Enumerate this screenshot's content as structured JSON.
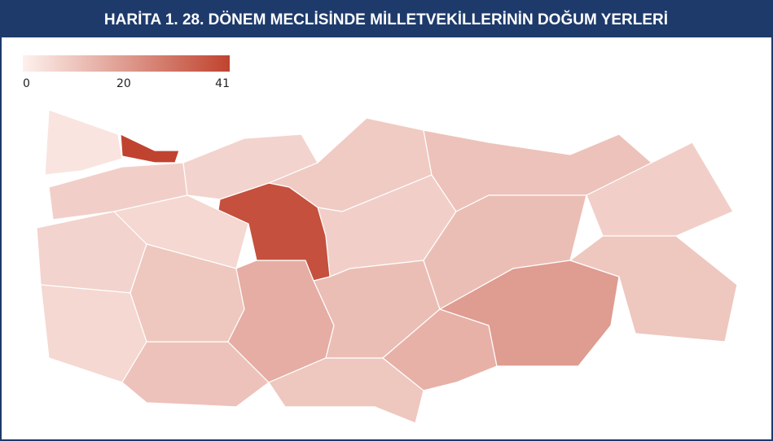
{
  "chart_data": {
    "type": "choropleth",
    "title": "HARİTA 1. 28. DÖNEM MECLİSİNDE MİLLETVEKİLLERİNİN DOĞUM YERLERİ",
    "clim": [
      0,
      41
    ],
    "cticks": [
      0,
      20,
      41
    ],
    "colors": [
      "#fdf1ed",
      "#c0432f"
    ],
    "values": [
      3,
      8,
      7,
      6,
      11,
      6,
      10,
      16,
      10,
      7,
      9,
      8,
      12,
      15,
      11,
      12,
      20,
      8,
      10,
      38,
      41
    ]
  }
}
